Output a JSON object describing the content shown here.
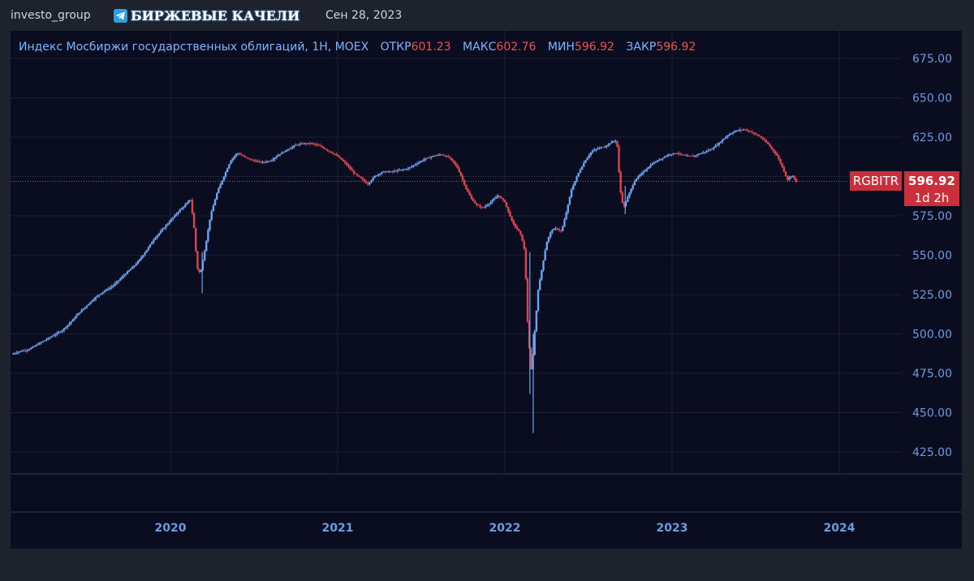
{
  "header": {
    "user": "investo_group",
    "channel_icon": "telegram-icon",
    "channel_name": "БИРЖЕВЫЕ КАЧЕЛИ",
    "date": "Сен 28, 2023"
  },
  "legend": {
    "title": "Индекс Мосбиржи государственных облигаций, 1H, MOEX",
    "open_label": "ОТКР",
    "open_value": "601.23",
    "high_label": "МАКС",
    "high_value": "602.76",
    "low_label": "МИН",
    "low_value": "596.92",
    "close_label": "ЗАКР",
    "close_value": "596.92"
  },
  "price_tag": {
    "symbol": "RGBITR",
    "price": "596.92",
    "countdown": "1d 2h"
  },
  "colors": {
    "up": "#6ea3ef",
    "down": "#e04452",
    "background": "#0a0d1f",
    "grid": "#1a1f33"
  },
  "chart_data": {
    "type": "candlestick",
    "y_ticks": [
      425,
      450,
      475,
      500,
      525,
      550,
      575,
      600,
      625,
      650,
      675
    ],
    "y_tick_labels": [
      "425.00",
      "450.00",
      "475.00",
      "500.00",
      "525.00",
      "550.00",
      "575.00",
      "",
      "625.00",
      "650.00",
      "675.00"
    ],
    "ylim": [
      400,
      685
    ],
    "x_ticks": [
      2020,
      2021,
      2022,
      2023,
      2024
    ],
    "x_tick_labels": [
      "2020",
      "2021",
      "2022",
      "2023",
      "2024"
    ],
    "xlim": [
      2019.04,
      2024.74
    ],
    "last_price": 596.92,
    "grid": true,
    "series": [
      {
        "close_path": [
          [
            2019.05,
            487
          ],
          [
            2019.1,
            489
          ],
          [
            2019.15,
            490
          ],
          [
            2019.2,
            493
          ],
          [
            2019.25,
            496
          ],
          [
            2019.3,
            499
          ],
          [
            2019.35,
            502
          ],
          [
            2019.4,
            507
          ],
          [
            2019.45,
            513
          ],
          [
            2019.5,
            518
          ],
          [
            2019.55,
            523
          ],
          [
            2019.6,
            527
          ],
          [
            2019.65,
            530
          ],
          [
            2019.7,
            535
          ],
          [
            2019.75,
            540
          ],
          [
            2019.8,
            545
          ],
          [
            2019.85,
            552
          ],
          [
            2019.9,
            560
          ],
          [
            2019.95,
            566
          ],
          [
            2020.0,
            572
          ],
          [
            2020.05,
            578
          ],
          [
            2020.1,
            583
          ],
          [
            2020.12,
            586
          ],
          [
            2020.14,
            570
          ],
          [
            2020.16,
            542
          ],
          [
            2020.18,
            538
          ],
          [
            2020.2,
            550
          ],
          [
            2020.22,
            562
          ],
          [
            2020.24,
            575
          ],
          [
            2020.28,
            590
          ],
          [
            2020.32,
            600
          ],
          [
            2020.36,
            610
          ],
          [
            2020.4,
            615
          ],
          [
            2020.45,
            612
          ],
          [
            2020.5,
            610
          ],
          [
            2020.55,
            609
          ],
          [
            2020.6,
            610
          ],
          [
            2020.65,
            614
          ],
          [
            2020.7,
            617
          ],
          [
            2020.75,
            620
          ],
          [
            2020.8,
            621
          ],
          [
            2020.85,
            621
          ],
          [
            2020.9,
            619
          ],
          [
            2020.95,
            616
          ],
          [
            2021.0,
            613
          ],
          [
            2021.05,
            608
          ],
          [
            2021.1,
            602
          ],
          [
            2021.15,
            598
          ],
          [
            2021.18,
            595
          ],
          [
            2021.22,
            600
          ],
          [
            2021.27,
            603
          ],
          [
            2021.32,
            603
          ],
          [
            2021.37,
            604
          ],
          [
            2021.42,
            605
          ],
          [
            2021.47,
            608
          ],
          [
            2021.52,
            611
          ],
          [
            2021.57,
            613
          ],
          [
            2021.62,
            614
          ],
          [
            2021.67,
            612
          ],
          [
            2021.71,
            607
          ],
          [
            2021.74,
            600
          ],
          [
            2021.77,
            592
          ],
          [
            2021.8,
            586
          ],
          [
            2021.83,
            582
          ],
          [
            2021.87,
            580
          ],
          [
            2021.92,
            584
          ],
          [
            2021.96,
            588
          ],
          [
            2022.0,
            584
          ],
          [
            2022.02,
            578
          ],
          [
            2022.05,
            570
          ],
          [
            2022.08,
            566
          ],
          [
            2022.1,
            562
          ],
          [
            2022.12,
            552
          ],
          [
            2022.14,
            500
          ],
          [
            2022.16,
            475
          ],
          [
            2022.18,
            503
          ],
          [
            2022.2,
            528
          ],
          [
            2022.22,
            540
          ],
          [
            2022.25,
            558
          ],
          [
            2022.28,
            566
          ],
          [
            2022.31,
            567
          ],
          [
            2022.34,
            565
          ],
          [
            2022.37,
            578
          ],
          [
            2022.4,
            592
          ],
          [
            2022.44,
            602
          ],
          [
            2022.48,
            610
          ],
          [
            2022.52,
            616
          ],
          [
            2022.56,
            618
          ],
          [
            2022.6,
            619
          ],
          [
            2022.64,
            622
          ],
          [
            2022.67,
            623
          ],
          [
            2022.69,
            592
          ],
          [
            2022.71,
            580
          ],
          [
            2022.74,
            588
          ],
          [
            2022.78,
            598
          ],
          [
            2022.83,
            603
          ],
          [
            2022.88,
            608
          ],
          [
            2022.93,
            611
          ],
          [
            2022.98,
            614
          ],
          [
            2023.03,
            615
          ],
          [
            2023.08,
            613
          ],
          [
            2023.13,
            613
          ],
          [
            2023.18,
            615
          ],
          [
            2023.23,
            617
          ],
          [
            2023.28,
            621
          ],
          [
            2023.33,
            626
          ],
          [
            2023.38,
            629
          ],
          [
            2023.43,
            630
          ],
          [
            2023.48,
            628
          ],
          [
            2023.53,
            625
          ],
          [
            2023.58,
            620
          ],
          [
            2023.63,
            613
          ],
          [
            2023.66,
            606
          ],
          [
            2023.69,
            598
          ],
          [
            2023.72,
            601
          ],
          [
            2023.74,
            596.92
          ]
        ],
        "notable_wicks": [
          {
            "x": 2020.18,
            "low": 526,
            "high": 552
          },
          {
            "x": 2022.16,
            "low": 437,
            "high": 500
          },
          {
            "x": 2022.14,
            "low": 462,
            "high": 552
          },
          {
            "x": 2022.71,
            "low": 576,
            "high": 594
          }
        ]
      }
    ]
  }
}
